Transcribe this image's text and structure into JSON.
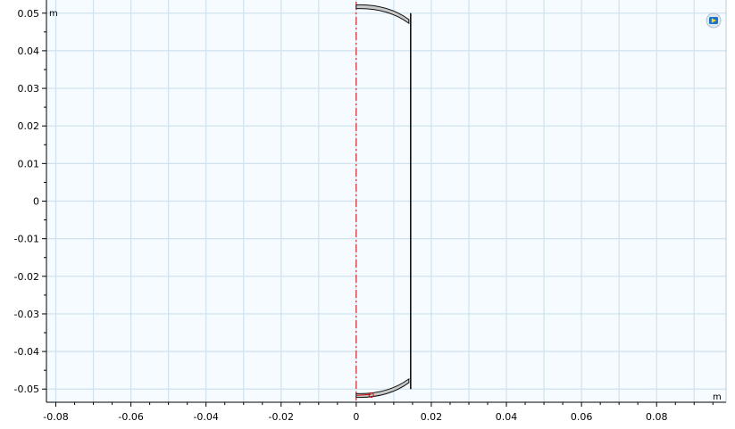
{
  "viewport": {
    "unit_x": "m",
    "unit_y": "m",
    "background_color": "#f5fbff",
    "grid_color": "#cfe2ee",
    "x_ticks": [
      "-0.08",
      "-0.06",
      "-0.04",
      "-0.02",
      "0",
      "0.02",
      "0.04",
      "0.06",
      "0.08"
    ],
    "y_ticks": [
      "0.05",
      "0.04",
      "0.03",
      "0.02",
      "0.01",
      "0",
      "-0.01",
      "-0.02",
      "-0.03",
      "-0.04",
      "-0.05"
    ],
    "x_range": [
      -0.0825,
      0.0985
    ],
    "y_range": [
      -0.0535,
      0.0535
    ],
    "symmetry_axis_color": "#cc0000",
    "geometry_color": "#111111",
    "shell_fill": "#c8c8c8",
    "plate_x": 0.0145,
    "plate_y_range": [
      -0.05,
      0.05
    ],
    "corner_icon": "view-cube-icon"
  }
}
